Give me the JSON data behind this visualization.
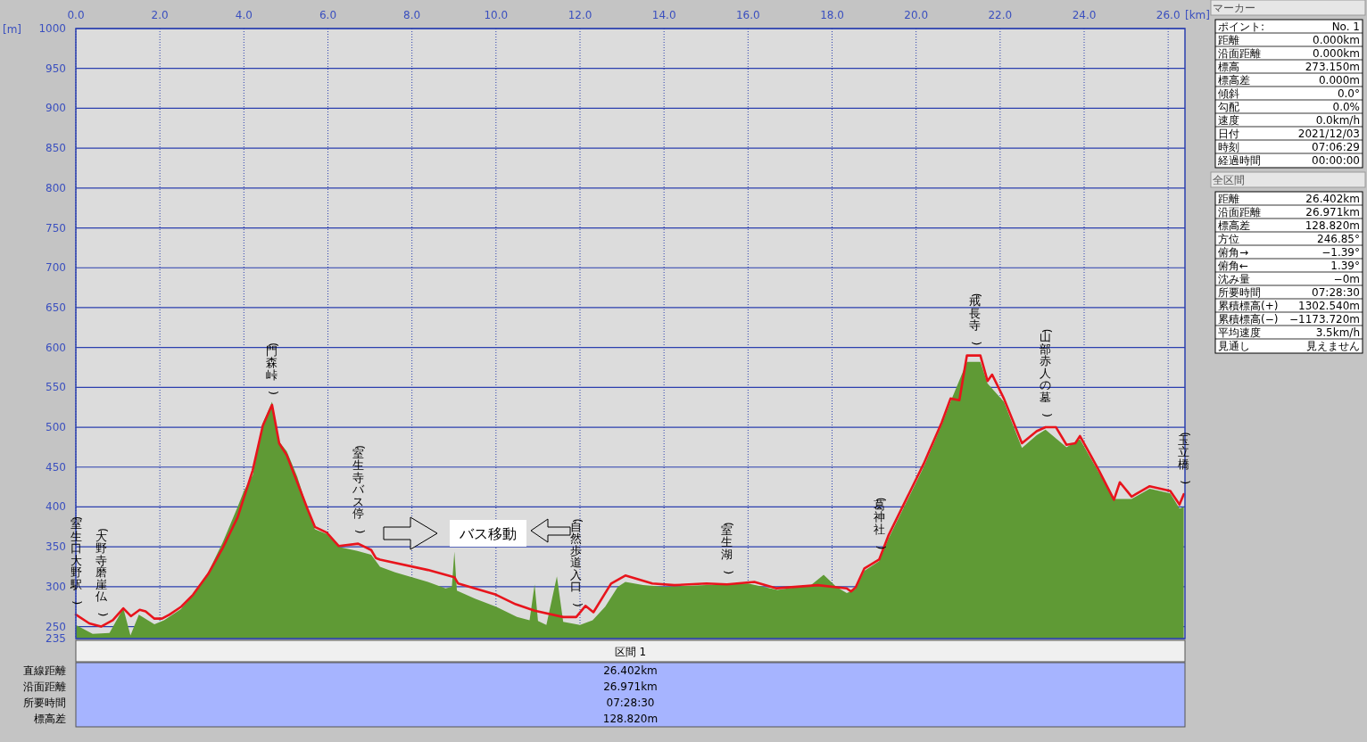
{
  "chart_data": [
    {
      "type": "area",
      "xlabel": "[km]",
      "ylabel": "[m]",
      "xlim": [
        0,
        26.4
      ],
      "ylim": [
        235,
        1000
      ],
      "xticks": [
        {
          "value": 0,
          "label": "0.0"
        },
        {
          "value": 2,
          "label": "2.0"
        },
        {
          "value": 4,
          "label": "4.0"
        },
        {
          "value": 6,
          "label": "6.0"
        },
        {
          "value": 8,
          "label": "8.0"
        },
        {
          "value": 10,
          "label": "10.0"
        },
        {
          "value": 12,
          "label": "12.0"
        },
        {
          "value": 14,
          "label": "14.0"
        },
        {
          "value": 16,
          "label": "16.0"
        },
        {
          "value": 18,
          "label": "18.0"
        },
        {
          "value": 20,
          "label": "20.0"
        },
        {
          "value": 22,
          "label": "22.0"
        },
        {
          "value": 24,
          "label": "24.0"
        },
        {
          "value": 26,
          "label": "26.0"
        }
      ],
      "yticks": [
        235,
        250,
        300,
        350,
        400,
        450,
        500,
        550,
        600,
        650,
        700,
        750,
        800,
        850,
        900,
        950,
        1000
      ],
      "grid": true,
      "series": [
        {
          "type": "area",
          "color": "#5f9a35",
          "x": [
            0,
            0.4,
            0.8,
            1.13,
            1.3,
            1.5,
            1.87,
            2.1,
            2.5,
            2.8,
            3.15,
            3.5,
            3.85,
            4.0,
            4.21,
            4.45,
            4.67,
            4.84,
            5.02,
            5.27,
            5.51,
            5.69,
            5.97,
            6.26,
            6.7,
            7.03,
            7.24,
            7.6,
            8.0,
            8.38,
            8.8,
            8.95,
            9.01,
            9.07,
            9.5,
            10.0,
            10.5,
            10.8,
            10.92,
            11.0,
            11.2,
            11.45,
            11.6,
            12.0,
            12.3,
            12.6,
            12.9,
            13.08,
            13.5,
            14.0,
            15.0,
            16.0,
            16.7,
            17.5,
            17.8,
            18.1,
            18.35,
            18.56,
            18.77,
            19.12,
            19.34,
            19.76,
            20.18,
            20.61,
            20.82,
            21.21,
            21.53,
            21.7,
            22.09,
            22.52,
            22.87,
            23.08,
            23.58,
            23.9,
            24.35,
            24.71,
            25.13,
            25.56,
            26.05,
            26.27,
            26.37
          ],
          "values": [
            252,
            241,
            242,
            273,
            239,
            265,
            253,
            258,
            272,
            290,
            318,
            356,
            400,
            420,
            440,
            505,
            532,
            482,
            470,
            438,
            398,
            372,
            366,
            350,
            345,
            340,
            325,
            318,
            312,
            306,
            298,
            300,
            344,
            295,
            285,
            275,
            262,
            258,
            303,
            257,
            252,
            313,
            256,
            252,
            258,
            275,
            300,
            306,
            302,
            300,
            302,
            304,
            296,
            302,
            315,
            300,
            292,
            297,
            320,
            332,
            360,
            405,
            450,
            503,
            532,
            582,
            582,
            555,
            532,
            474,
            490,
            497,
            475,
            485,
            443,
            410,
            410,
            423,
            417,
            398,
            400
          ]
        },
        {
          "type": "line",
          "color": "#e8141c",
          "x": [
            0,
            0.32,
            0.6,
            0.88,
            1.13,
            1.31,
            1.52,
            1.66,
            1.87,
            2.05,
            2.23,
            2.51,
            2.79,
            3.15,
            3.5,
            3.85,
            4.21,
            4.45,
            4.67,
            4.84,
            5.02,
            5.27,
            5.51,
            5.69,
            5.97,
            6.26,
            6.72,
            7.03,
            7.14,
            7.24,
            8.38,
            9.01,
            9.1,
            10.0,
            10.47,
            10.92,
            11.6,
            11.91,
            12.13,
            12.32,
            12.74,
            13.08,
            13.72,
            14.25,
            15.01,
            15.5,
            16.15,
            16.68,
            17.66,
            18.35,
            18.45,
            18.56,
            18.77,
            19.12,
            19.34,
            19.76,
            20.18,
            20.61,
            20.82,
            21.03,
            21.21,
            21.4,
            21.53,
            21.7,
            21.81,
            22.09,
            22.52,
            22.87,
            23.08,
            23.33,
            23.58,
            23.79,
            23.9,
            24.08,
            24.35,
            24.71,
            24.85,
            25.13,
            25.56,
            26.05,
            26.27,
            26.37
          ],
          "values": [
            265,
            254,
            250,
            258,
            273,
            263,
            271,
            269,
            260,
            260,
            265,
            275,
            290,
            316,
            349,
            387,
            446,
            502,
            528,
            480,
            465,
            431,
            398,
            375,
            368,
            351,
            354,
            346,
            336,
            334,
            321,
            312,
            304,
            290,
            278,
            270,
            262,
            262,
            276,
            268,
            304,
            314,
            304,
            302,
            304,
            303,
            306,
            298,
            302,
            298,
            294,
            299,
            323,
            334,
            364,
            409,
            454,
            506,
            536,
            534,
            590,
            590,
            590,
            558,
            566,
            536,
            480,
            495,
            500,
            500,
            478,
            480,
            489,
            472,
            446,
            409,
            431,
            413,
            426,
            420,
            403,
            416
          ]
        }
      ],
      "annotations": [
        {
          "text": "(室生口大野駅)",
          "x": 0,
          "y": 265
        },
        {
          "text": "(大野寺磨崖仏)",
          "x": 0.6,
          "y": 250
        },
        {
          "text": "(門森峠)",
          "x": 4.67,
          "y": 528
        },
        {
          "text": "(室生寺バス停)",
          "x": 6.72,
          "y": 354
        },
        {
          "text": "(自然歩道入口)",
          "x": 11.91,
          "y": 262
        },
        {
          "text": "(室生湖)",
          "x": 15.5,
          "y": 303
        },
        {
          "text": "(葛神社)",
          "x": 19.12,
          "y": 334
        },
        {
          "text": "(戒長寺)",
          "x": 21.4,
          "y": 590
        },
        {
          "text": "(山部赤人の墓)",
          "x": 23.08,
          "y": 500
        },
        {
          "text": "(玉立橋)",
          "x": 26.37,
          "y": 416
        },
        "バス移動"
      ]
    },
    {
      "type": "other",
      "title": "マーカー",
      "annotations": [
        "ポイント:",
        "No. 1",
        "距離",
        "0.000km",
        "沿面距離",
        "0.000km",
        "標高",
        "273.150m",
        "標高差",
        "0.000m",
        "傾斜",
        "0.0°",
        "勾配",
        "0.0%",
        "速度",
        "0.0km/h",
        "日付",
        "2021/12/03",
        "時刻",
        "07:06:29",
        "経過時間",
        "00:00:00"
      ]
    },
    {
      "type": "other",
      "title": "全区間",
      "annotations": [
        "距離",
        "26.402km",
        "沿面距離",
        "26.971km",
        "標高差",
        "128.820m",
        "方位",
        "246.85°",
        "俯角→",
        "−1.39°",
        "俯角←",
        "1.39°",
        "沈み量",
        "−0m",
        "所要時間",
        "07:28:30",
        "累積標高(+)",
        "1302.540m",
        "累積標高(−)",
        "−1173.720m",
        "平均速度",
        "3.5km/h",
        "見通し",
        "見えません"
      ]
    },
    {
      "type": "other",
      "title": "区間 1",
      "annotations": [
        "直線距離",
        "26.402km",
        "沿面距離",
        "26.971km",
        "所要時間",
        "07:28:30",
        "標高差",
        "128.820m"
      ]
    }
  ]
}
